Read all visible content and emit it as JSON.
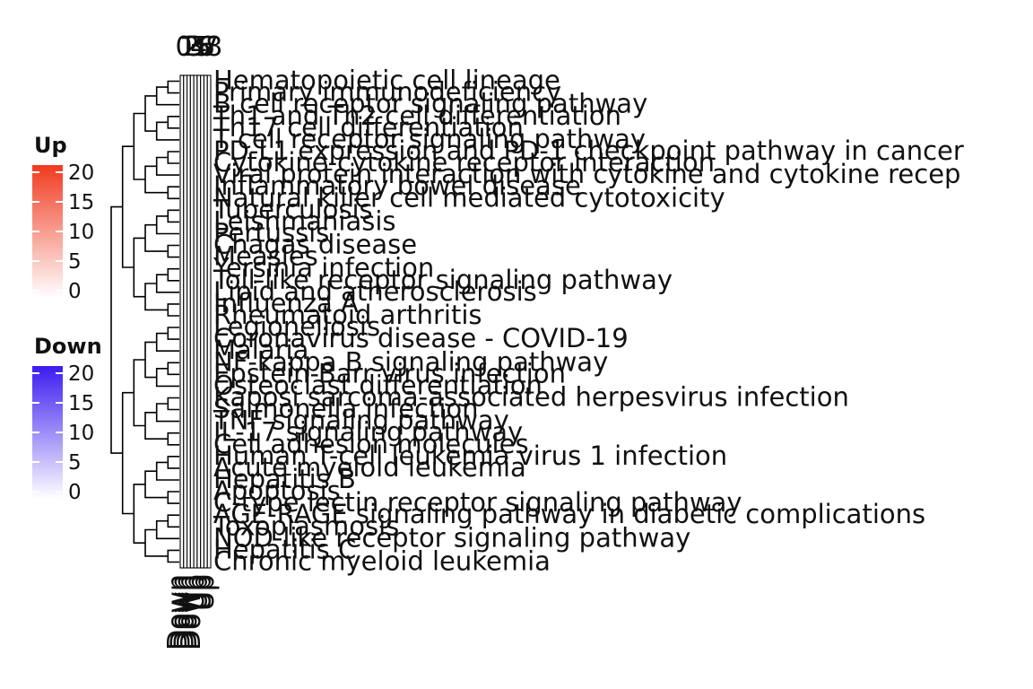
{
  "chart_data": {
    "type": "heatmap",
    "title": "",
    "rows": [
      "Hematopoietic cell lineage",
      "Primary immunodeficiency",
      "B cell receptor signaling pathway",
      "Th1 and Th2 cell differentiation",
      "Th17 cell differentiation",
      "T cell receptor signaling pathway",
      "PD-L1 expression and PD-1 checkpoint pathway in cancer",
      "Cytokine-cytokine receptor interaction",
      "Viral protein interaction with cytokine and cytokine recep",
      "Inflammatory bowel disease",
      "Natural killer cell mediated cytotoxicity",
      "Tuberculosis",
      "Leishmaniasis",
      "Pertussis",
      "Chagas disease",
      "Measles",
      "Yersinia infection",
      "Toll-like receptor signaling pathway",
      "Lipid and atherosclerosis",
      "Influenza A",
      "Rheumatoid arthritis",
      "Legionellosis",
      "Coronavirus disease - COVID-19",
      "Malaria",
      "NF-kappa B signaling pathway",
      "Epstein-Barr virus infection",
      "Osteoclast differentiation",
      "Kaposi sarcoma-associated herpesvirus infection",
      "Salmonella infection",
      "TNF signaling pathway",
      "IL-17 signaling pathway",
      "Cell adhesion molecules",
      "Human T-cell leukemia virus 1 infection",
      "Acute myeloid leukemia",
      "Hepatitis B",
      "Apoptosis",
      "C-type lectin receptor signaling pathway",
      "AGE-RAGE signaling pathway in diabetic complications",
      "Toxoplasmosis",
      "NOD-like receptor signaling pathway",
      "Hepatitis C",
      "Chronic myeloid leukemia"
    ],
    "columns_top_labels": [
      "0",
      "1",
      "2",
      "3",
      "4",
      "5",
      "6",
      "7",
      "8"
    ],
    "columns_bottom_labels": [
      "Down",
      "Down",
      "Down",
      "Down",
      "Down",
      "Up",
      "Up",
      "Up",
      "Up"
    ],
    "legends": [
      {
        "title": "Up",
        "ticks": [
          "20",
          "15",
          "10",
          "5",
          "0"
        ],
        "range": [
          0,
          20
        ],
        "color_high": "#f03b20",
        "color_low": "#ffffff"
      },
      {
        "title": "Down",
        "ticks": [
          "20",
          "15",
          "10",
          "5",
          "0"
        ],
        "range": [
          0,
          20
        ],
        "color_high": "#3b1cf0",
        "color_low": "#ffffff"
      }
    ],
    "cell_color": "#ffffff",
    "grid": true
  }
}
